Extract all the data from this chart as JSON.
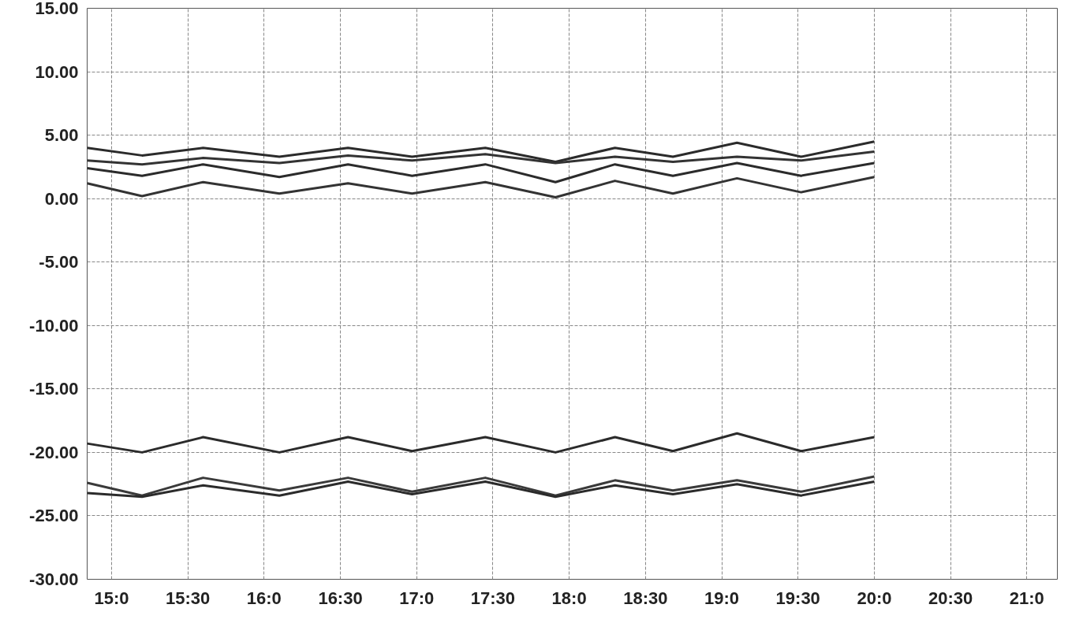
{
  "chart_data": {
    "type": "line",
    "x": [
      14.84,
      15.2,
      15.6,
      16.1,
      16.55,
      16.97,
      17.45,
      17.91,
      18.3,
      18.68,
      19.1,
      19.52,
      20.0
    ],
    "series": [
      {
        "color": "#2b2b2b",
        "values": [
          4.0,
          3.4,
          4.0,
          3.3,
          4.0,
          3.3,
          4.0,
          2.9,
          4.0,
          3.3,
          4.4,
          3.3,
          4.5
        ]
      },
      {
        "color": "#333333",
        "values": [
          3.0,
          2.7,
          3.2,
          2.8,
          3.4,
          3.0,
          3.5,
          2.8,
          3.3,
          2.9,
          3.3,
          3.0,
          3.7
        ]
      },
      {
        "color": "#2b2b2b",
        "values": [
          2.4,
          1.8,
          2.7,
          1.7,
          2.7,
          1.8,
          2.7,
          1.3,
          2.7,
          1.8,
          2.8,
          1.8,
          2.8
        ]
      },
      {
        "color": "#333333",
        "values": [
          1.2,
          0.2,
          1.3,
          0.4,
          1.2,
          0.4,
          1.3,
          0.1,
          1.4,
          0.4,
          1.6,
          0.5,
          1.7
        ]
      },
      {
        "color": "#2b2b2b",
        "values": [
          -19.3,
          -20.0,
          -18.8,
          -20.0,
          -18.8,
          -19.9,
          -18.8,
          -20.0,
          -18.8,
          -19.9,
          -18.5,
          -19.9,
          -18.8
        ]
      },
      {
        "color": "#3a3a3a",
        "values": [
          -22.4,
          -23.4,
          -22.0,
          -23.0,
          -22.0,
          -23.1,
          -22.0,
          -23.4,
          -22.2,
          -23.0,
          -22.2,
          -23.1,
          -21.9
        ]
      },
      {
        "color": "#2b2b2b",
        "values": [
          -23.2,
          -23.5,
          -22.6,
          -23.4,
          -22.3,
          -23.3,
          -22.3,
          -23.5,
          -22.6,
          -23.3,
          -22.5,
          -23.4,
          -22.3
        ]
      }
    ],
    "xlim": [
      14.84,
      21.2
    ],
    "xticks": [
      {
        "value": 15,
        "label": "15:0"
      },
      {
        "value": 15.5,
        "label": "15:30"
      },
      {
        "value": 16,
        "label": "16:0"
      },
      {
        "value": 16.5,
        "label": "16:30"
      },
      {
        "value": 17,
        "label": "17:0"
      },
      {
        "value": 17.5,
        "label": "17:30"
      },
      {
        "value": 18,
        "label": "18:0"
      },
      {
        "value": 18.5,
        "label": "18:30"
      },
      {
        "value": 19,
        "label": "19:0"
      },
      {
        "value": 19.5,
        "label": "19:30"
      },
      {
        "value": 20,
        "label": "20:0"
      },
      {
        "value": 20.5,
        "label": "20:30"
      },
      {
        "value": 21,
        "label": "21:0"
      }
    ],
    "ylim": [
      -30,
      15
    ],
    "yticks": [
      {
        "value": 15,
        "label": "15.00"
      },
      {
        "value": 10,
        "label": "10.00"
      },
      {
        "value": 5,
        "label": "5.00"
      },
      {
        "value": 0,
        "label": "0.00"
      },
      {
        "value": -5,
        "label": "-5.00"
      },
      {
        "value": -10,
        "label": "-10.00"
      },
      {
        "value": -15,
        "label": "-15.00"
      },
      {
        "value": -20,
        "label": "-20.00"
      },
      {
        "value": -25,
        "label": "-25.00"
      },
      {
        "value": -30,
        "label": "-30.00"
      }
    ],
    "grid": true,
    "line_style": "solid",
    "marker": "none"
  }
}
